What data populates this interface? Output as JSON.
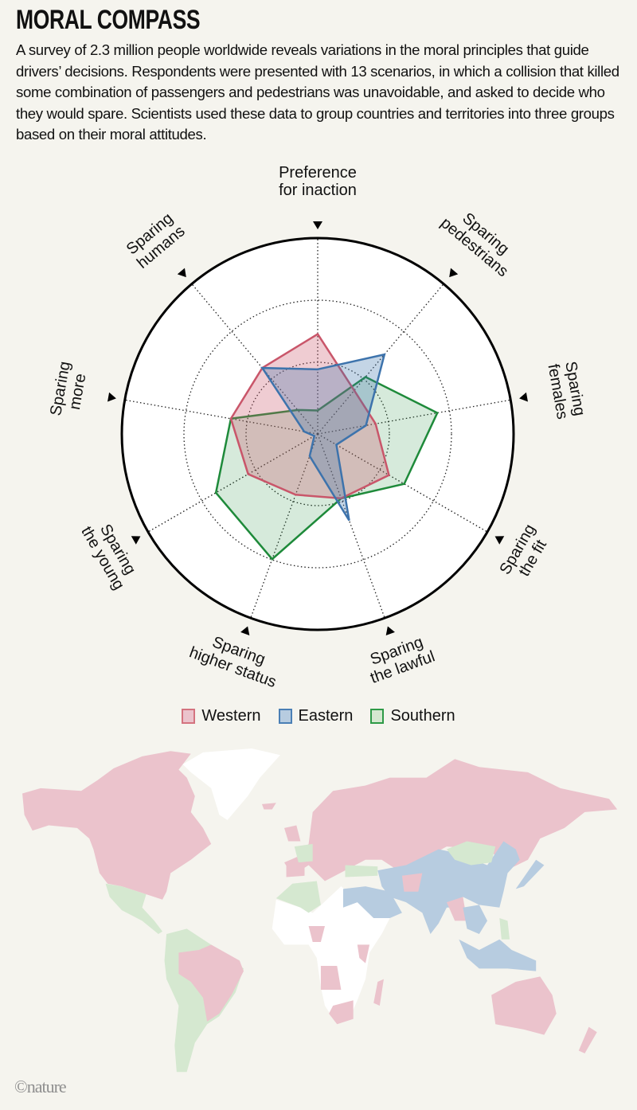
{
  "header": {
    "title": "MORAL COMPASS",
    "description": "A survey of 2.3 million people worldwide reveals variations in the moral principles that guide drivers’ decisions. Respondents were presented with 13 scenarios, in which a collision that killed some combination of passengers and pedestrians was unavoidable, and asked to decide who they would spare. Scientists used these data to group countries and territories into three groups based on their moral attitudes."
  },
  "chart_data": {
    "type": "radar",
    "axes": [
      [
        "Preference",
        "for inaction"
      ],
      [
        "Sparing",
        "pedestrians"
      ],
      [
        "Sparing",
        "females"
      ],
      [
        "Sparing",
        "the fit"
      ],
      [
        "Sparing",
        "the lawful"
      ],
      [
        "Sparing",
        "higher status"
      ],
      [
        "Sparing",
        "the young"
      ],
      [
        "Sparing",
        "more"
      ],
      [
        "Sparing",
        "humans"
      ]
    ],
    "range": [
      0,
      1
    ],
    "grid": true,
    "legend_position": "bottom",
    "series": [
      {
        "name": "Southern",
        "color": "#1e8a3a",
        "fill": "#d5e8d0",
        "values": [
          0.12,
          0.38,
          0.62,
          0.51,
          0.35,
          0.68,
          0.6,
          0.45,
          0.16
        ]
      },
      {
        "name": "Western",
        "color": "#c9566a",
        "fill": "#ebc3cc",
        "values": [
          0.51,
          0.29,
          0.3,
          0.42,
          0.35,
          0.33,
          0.41,
          0.45,
          0.44
        ]
      },
      {
        "name": "Eastern",
        "color": "#3d73ac",
        "fill": "#b7cce0",
        "values": [
          0.33,
          0.53,
          0.25,
          0.11,
          0.47,
          0.12,
          0.02,
          0.07,
          0.44
        ]
      }
    ]
  },
  "legend": [
    {
      "label": "Western",
      "fill": "#ebc3cc",
      "border": "#d4737f"
    },
    {
      "label": "Eastern",
      "fill": "#b7cce0",
      "border": "#4a7fb5"
    },
    {
      "label": "Southern",
      "fill": "#d5e8d0",
      "border": "#2e9a47"
    }
  ],
  "map": {
    "colors": {
      "western": "#ebc3cc",
      "eastern": "#b7cce0",
      "southern": "#d5e8d0",
      "no_group": "#ffffff"
    }
  },
  "credit": "©nature"
}
